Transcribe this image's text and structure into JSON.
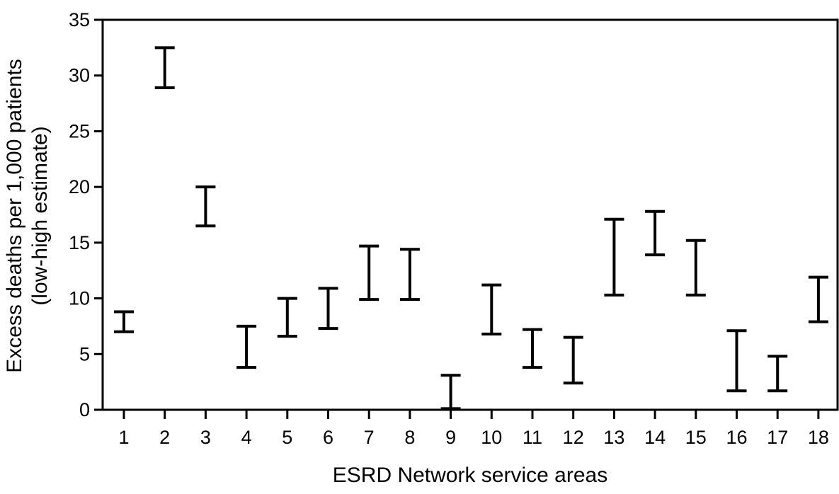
{
  "chart_data": {
    "type": "range",
    "xlabel": "ESRD Network service areas",
    "ylabel_lines": [
      "Excess deaths per 1,000 patients",
      "(low-high estimate)"
    ],
    "ylim": [
      0,
      35
    ],
    "y_ticks": [
      "0",
      "5",
      "10",
      "15",
      "20",
      "25",
      "30",
      "35"
    ],
    "grid": false,
    "legend": "none",
    "series": [
      {
        "categories": [
          "1",
          "2",
          "3",
          "4",
          "5",
          "6",
          "7",
          "8",
          "9",
          "10",
          "11",
          "12",
          "13",
          "14",
          "15",
          "16",
          "17",
          "18"
        ],
        "low": [
          7.0,
          28.9,
          16.5,
          3.8,
          6.6,
          7.3,
          9.9,
          9.9,
          0.1,
          6.8,
          3.8,
          2.4,
          10.3,
          13.9,
          10.3,
          1.7,
          1.7,
          7.9
        ],
        "high": [
          8.8,
          32.5,
          20.0,
          7.5,
          10.0,
          10.9,
          14.7,
          14.4,
          3.1,
          11.2,
          7.2,
          6.5,
          17.1,
          17.8,
          15.2,
          7.1,
          4.8,
          11.9
        ]
      }
    ]
  }
}
